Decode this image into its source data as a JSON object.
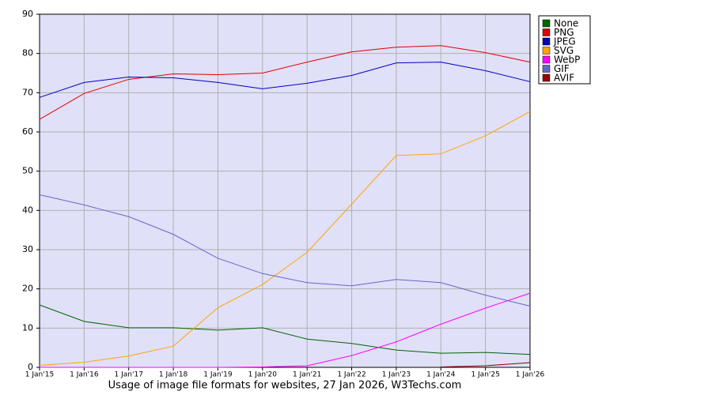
{
  "chart_data": {
    "type": "line",
    "title": "Usage of image file formats for websites, 27 Jan 2026, W3Techs.com",
    "categories": [
      "1 Jan'15",
      "1 Jan'16",
      "1 Jan'17",
      "1 Jan'18",
      "1 Jan'19",
      "1 Jan'20",
      "1 Jan'21",
      "1 Jan'22",
      "1 Jan'23",
      "1 Jan'24",
      "1 Jan'25",
      "1 Jan'26"
    ],
    "series": [
      {
        "name": "None",
        "color": "#006600",
        "values": [
          15.9,
          11.7,
          10.1,
          10.1,
          9.5,
          10.1,
          7.2,
          6.1,
          4.4,
          3.6,
          3.8,
          3.3
        ]
      },
      {
        "name": "PNG",
        "color": "#e00000",
        "values": [
          63.2,
          69.8,
          73.4,
          74.8,
          74.6,
          75.0,
          77.8,
          80.4,
          81.6,
          82.0,
          80.2,
          77.8
        ]
      },
      {
        "name": "JPEG",
        "color": "#0000c0",
        "values": [
          68.8,
          72.6,
          74.0,
          73.8,
          72.6,
          71.0,
          72.4,
          74.4,
          77.6,
          77.8,
          75.6,
          72.8
        ]
      },
      {
        "name": "SVG",
        "color": "#ffa500",
        "values": [
          0.5,
          1.3,
          2.9,
          5.4,
          15.2,
          21.1,
          29.3,
          41.6,
          54.0,
          54.4,
          59.0,
          65.2
        ]
      },
      {
        "name": "WebP",
        "color": "#ff00ff",
        "values": [
          0,
          0,
          0,
          0,
          0,
          0.1,
          0.4,
          3.0,
          6.5,
          11.0,
          15.1,
          18.9
        ]
      },
      {
        "name": "GIF",
        "color": "#6666cc",
        "values": [
          44.0,
          41.4,
          38.4,
          33.9,
          27.8,
          23.9,
          21.6,
          20.8,
          22.4,
          21.6,
          18.4,
          15.6
        ]
      },
      {
        "name": "AVIF",
        "color": "#990000",
        "values": [
          null,
          null,
          null,
          null,
          null,
          null,
          null,
          null,
          null,
          0.1,
          0.4,
          1.2
        ]
      }
    ],
    "ylim": [
      0,
      90
    ],
    "yticks": [
      0,
      10,
      20,
      30,
      40,
      50,
      60,
      70,
      80,
      90
    ],
    "grid": true
  }
}
